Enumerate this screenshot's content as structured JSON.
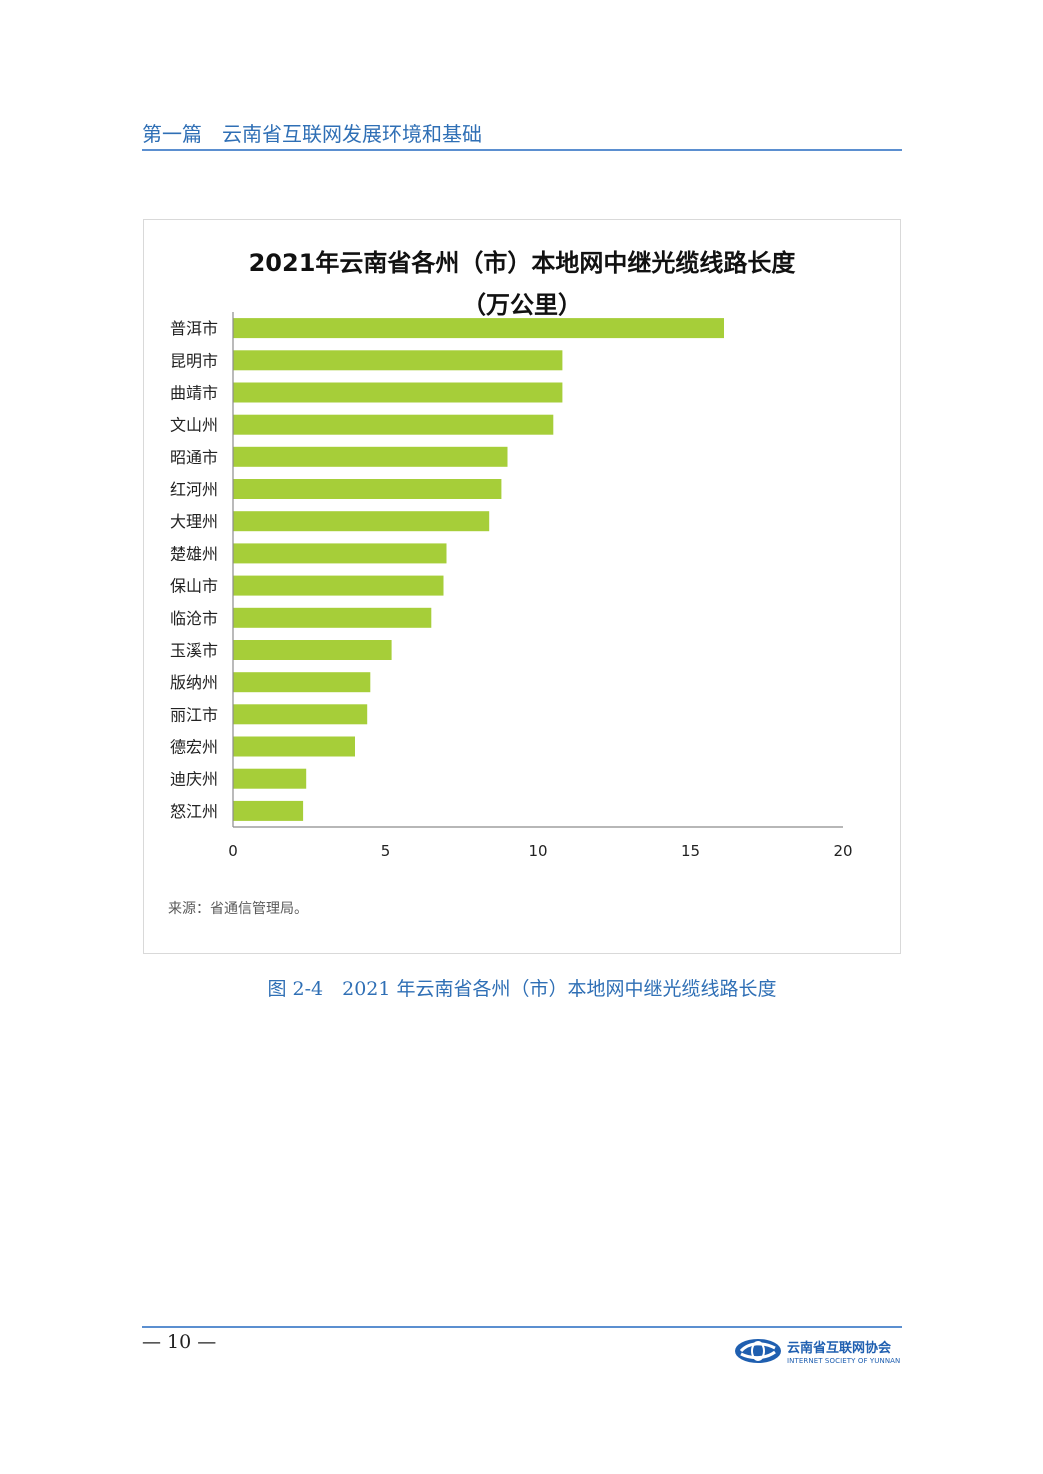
{
  "header": {
    "title": "第一篇　云南省互联网发展环境和基础"
  },
  "chart_data": {
    "type": "bar",
    "orientation": "horizontal",
    "title_line1": "2021年云南省各州（市）本地网中继光缆线路长度",
    "title_line2": "（万公里）",
    "categories": [
      "普洱市",
      "昆明市",
      "曲靖市",
      "文山州",
      "昭通市",
      "红河州",
      "大理州",
      "楚雄州",
      "保山市",
      "临沧市",
      "玉溪市",
      "版纳州",
      "丽江市",
      "德宏州",
      "迪庆州",
      "怒江州"
    ],
    "values": [
      16.1,
      10.8,
      10.8,
      10.5,
      9.0,
      8.8,
      8.4,
      7.0,
      6.9,
      6.5,
      5.2,
      4.5,
      4.4,
      4.0,
      2.4,
      2.3
    ],
    "xlim": [
      0,
      20
    ],
    "xticks": [
      0,
      5,
      10,
      15,
      20
    ],
    "xlabel": "",
    "ylabel": "",
    "grid": false,
    "legend": "none",
    "bar_color": "#a6ce39"
  },
  "source": "来源：省通信管理局。",
  "caption": "图 2-4　2021 年云南省各州（市）本地网中继光缆线路长度",
  "footer": {
    "page_number": "— 10 —",
    "logo_cn": "云南省互联网协会",
    "logo_en": "INTERNET SOCIETY OF YUNNAN"
  }
}
